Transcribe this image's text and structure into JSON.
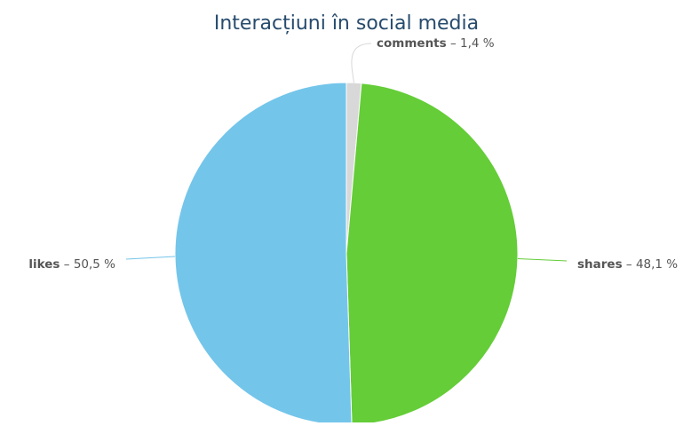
{
  "chart_data": {
    "type": "pie",
    "title": "Interacțiuni în social media",
    "start_angle_deg": 0,
    "direction": "clockwise",
    "slices": [
      {
        "name": "comments",
        "value": 1.4,
        "display": "1,4 %",
        "color": "#d8d8d8",
        "label_side": "top"
      },
      {
        "name": "shares",
        "value": 48.1,
        "display": "48,1 %",
        "color": "#64cd37",
        "label_side": "right"
      },
      {
        "name": "likes",
        "value": 50.5,
        "display": "50,5 %",
        "color": "#74c5ea",
        "label_side": "left"
      }
    ],
    "label_separator": " – ",
    "connector_color": {
      "comments": "#d8d8d8",
      "shares": "#64cd37",
      "likes": "#74c5ea"
    }
  }
}
